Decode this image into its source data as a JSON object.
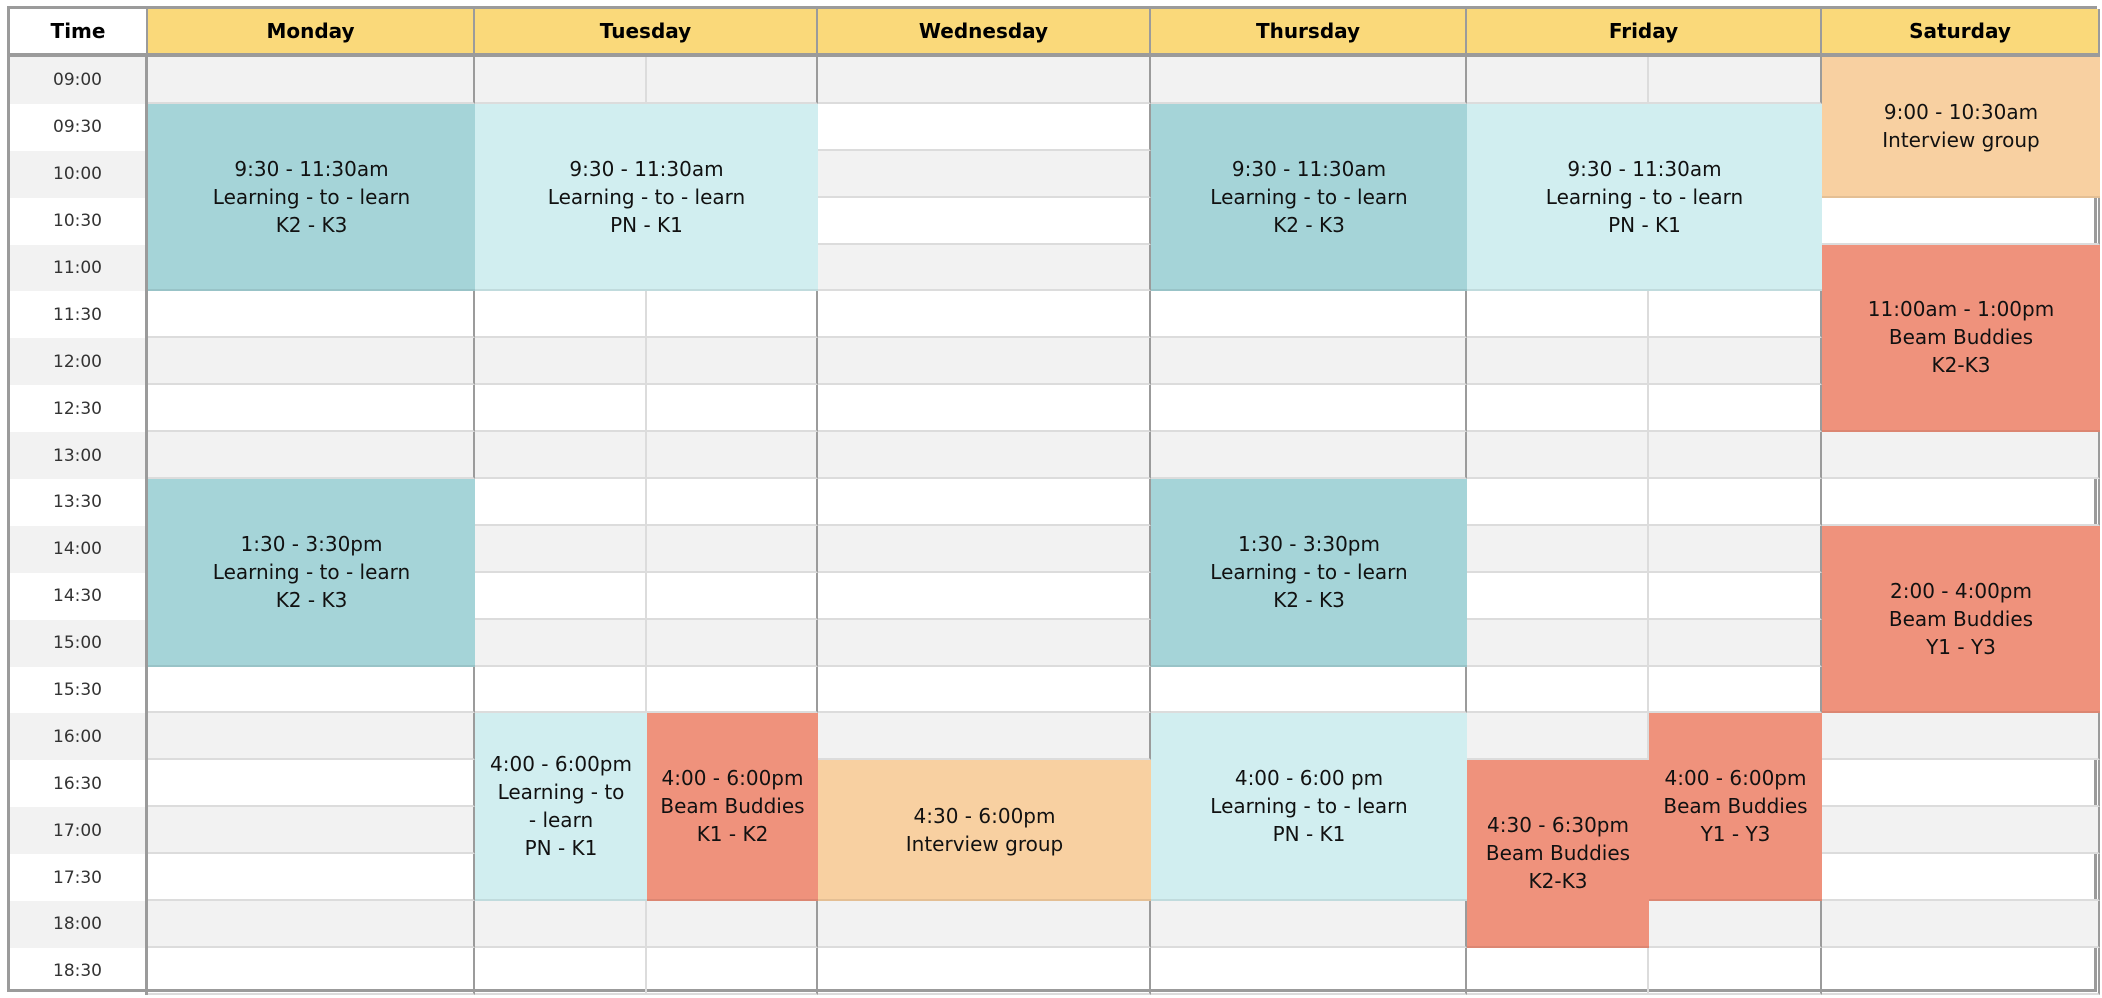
{
  "header": {
    "time_label": "Time",
    "days": [
      "Monday",
      "Tuesday",
      "Wednesday",
      "Thursday",
      "Friday",
      "Saturday"
    ]
  },
  "times": [
    "09:00",
    "09:30",
    "10:00",
    "10:30",
    "11:00",
    "11:30",
    "12:00",
    "12:30",
    "13:00",
    "13:30",
    "14:00",
    "14:30",
    "15:00",
    "15:30",
    "16:00",
    "16:30",
    "17:00",
    "17:30",
    "18:00",
    "18:30"
  ],
  "colors": {
    "header": "#fad97a",
    "teal": "#a5d4d8",
    "light_cyan": "#d1eef0",
    "salmon": "#ef927c",
    "peach": "#f8d0a1",
    "row_gray": "#f2f2f2"
  },
  "events": [
    {
      "day": "Monday",
      "part": "full",
      "start": "09:30",
      "end": "11:30",
      "color": "teal",
      "lines": [
        "9:30 - 11:30am",
        "Learning - to - learn",
        "K2 - K3"
      ]
    },
    {
      "day": "Monday",
      "part": "full",
      "start": "13:30",
      "end": "15:30",
      "color": "teal",
      "lines": [
        "1:30 - 3:30pm",
        "Learning - to - learn",
        "K2 - K3"
      ]
    },
    {
      "day": "Tuesday",
      "part": "full",
      "start": "09:30",
      "end": "11:30",
      "color": "light_cyan",
      "lines": [
        "9:30 - 11:30am",
        "Learning - to - learn",
        "PN - K1"
      ]
    },
    {
      "day": "Tuesday",
      "part": "left",
      "start": "16:00",
      "end": "18:00",
      "color": "light_cyan",
      "lines": [
        "4:00 - 6:00pm",
        "Learning - to",
        "- learn",
        "PN - K1"
      ]
    },
    {
      "day": "Tuesday",
      "part": "right",
      "start": "16:00",
      "end": "18:00",
      "color": "salmon",
      "lines": [
        "4:00 - 6:00pm",
        "Beam Buddies",
        "K1 - K2"
      ]
    },
    {
      "day": "Wednesday",
      "part": "full",
      "start": "16:30",
      "end": "18:00",
      "color": "peach",
      "lines": [
        "4:30 - 6:00pm",
        "Interview group"
      ]
    },
    {
      "day": "Thursday",
      "part": "full",
      "start": "09:30",
      "end": "11:30",
      "color": "teal",
      "lines": [
        "9:30 - 11:30am",
        "Learning - to - learn",
        "K2 - K3"
      ]
    },
    {
      "day": "Thursday",
      "part": "full",
      "start": "13:30",
      "end": "15:30",
      "color": "teal",
      "lines": [
        "1:30 - 3:30pm",
        "Learning - to - learn",
        "K2 - K3"
      ]
    },
    {
      "day": "Thursday",
      "part": "full",
      "start": "16:00",
      "end": "18:00",
      "color": "light_cyan",
      "lines": [
        "4:00 - 6:00 pm",
        "Learning - to - learn",
        "PN - K1"
      ]
    },
    {
      "day": "Friday",
      "part": "full",
      "start": "09:30",
      "end": "11:30",
      "color": "light_cyan",
      "lines": [
        "9:30 - 11:30am",
        "Learning - to - learn",
        "PN - K1"
      ]
    },
    {
      "day": "Friday",
      "part": "left",
      "start": "16:30",
      "end": "18:30",
      "color": "salmon",
      "lines": [
        "4:30 - 6:30pm",
        "Beam Buddies",
        "K2-K3"
      ]
    },
    {
      "day": "Friday",
      "part": "right",
      "start": "16:00",
      "end": "18:00",
      "color": "salmon",
      "lines": [
        "4:00 - 6:00pm",
        "Beam Buddies",
        "Y1 - Y3"
      ]
    },
    {
      "day": "Saturday",
      "part": "full",
      "start": "09:00",
      "end": "10:30",
      "color": "peach",
      "lines": [
        "9:00 - 10:30am",
        "Interview group"
      ]
    },
    {
      "day": "Saturday",
      "part": "full",
      "start": "11:00",
      "end": "13:00",
      "color": "salmon",
      "lines": [
        "11:00am - 1:00pm",
        "Beam Buddies",
        "K2-K3"
      ]
    },
    {
      "day": "Saturday",
      "part": "full",
      "start": "14:00",
      "end": "16:00",
      "color": "salmon",
      "lines": [
        "2:00 - 4:00pm",
        "Beam Buddies",
        "Y1 - Y3"
      ]
    }
  ]
}
